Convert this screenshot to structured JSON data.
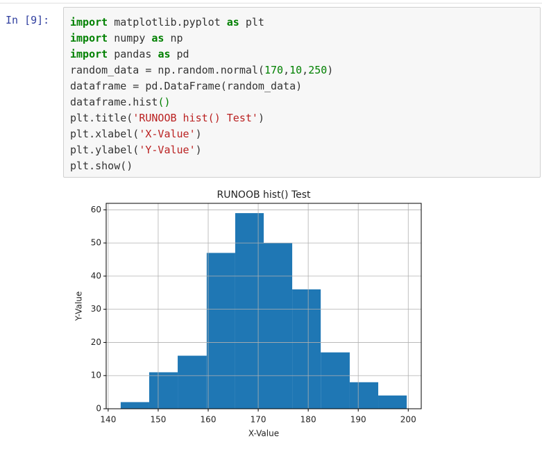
{
  "prompt": "In [9]:",
  "code": {
    "lines": [
      [
        [
          "import",
          "kw"
        ],
        [
          " matplotlib.pyplot ",
          "plain"
        ],
        [
          "as",
          "kw"
        ],
        [
          " plt",
          "plain"
        ]
      ],
      [
        [
          "import",
          "kw"
        ],
        [
          " numpy ",
          "plain"
        ],
        [
          "as",
          "kw"
        ],
        [
          " np",
          "plain"
        ]
      ],
      [
        [
          "import",
          "kw"
        ],
        [
          " pandas ",
          "plain"
        ],
        [
          "as",
          "kw"
        ],
        [
          " pd",
          "plain"
        ]
      ],
      [
        [
          "random_data = np.random.normal(",
          "plain"
        ],
        [
          "170",
          "num"
        ],
        [
          ",",
          "plain"
        ],
        [
          "10",
          "num"
        ],
        [
          ",",
          "plain"
        ],
        [
          "250",
          "num"
        ],
        [
          ")",
          "plain"
        ]
      ],
      [
        [
          "dataframe = pd.DataFrame(random_data)",
          "plain"
        ]
      ],
      [
        [
          "dataframe.hist",
          "plain"
        ],
        [
          "()",
          "num"
        ]
      ],
      [
        [
          "plt.title(",
          "plain"
        ],
        [
          "'RUNOOB hist() Test'",
          "str"
        ],
        [
          ")",
          "plain"
        ]
      ],
      [
        [
          "plt.xlabel(",
          "plain"
        ],
        [
          "'X-Value'",
          "str"
        ],
        [
          ")",
          "plain"
        ]
      ],
      [
        [
          "plt.ylabel(",
          "plain"
        ],
        [
          "'Y-Value'",
          "str"
        ],
        [
          ")",
          "plain"
        ]
      ],
      [
        [
          "plt.show()",
          "plain"
        ]
      ]
    ]
  },
  "chart_data": {
    "type": "histogram",
    "title": "RUNOOB hist() Test",
    "x_label": "X-Value",
    "y_label": "Y-Value",
    "bins": [
      142.5,
      148.2,
      153.9,
      159.7,
      165.4,
      171.1,
      176.8,
      182.5,
      188.3,
      194.0,
      199.7
    ],
    "values": [
      2,
      11,
      16,
      47,
      59,
      50,
      36,
      17,
      8,
      4
    ],
    "color": "#1f77b4",
    "xlim": [
      139.6,
      202.6
    ],
    "ylim": [
      0,
      61.95
    ],
    "xticks": [
      140,
      150,
      160,
      170,
      180,
      190,
      200
    ],
    "yticks": [
      0,
      10,
      20,
      30,
      40,
      50,
      60
    ],
    "grid": true
  }
}
